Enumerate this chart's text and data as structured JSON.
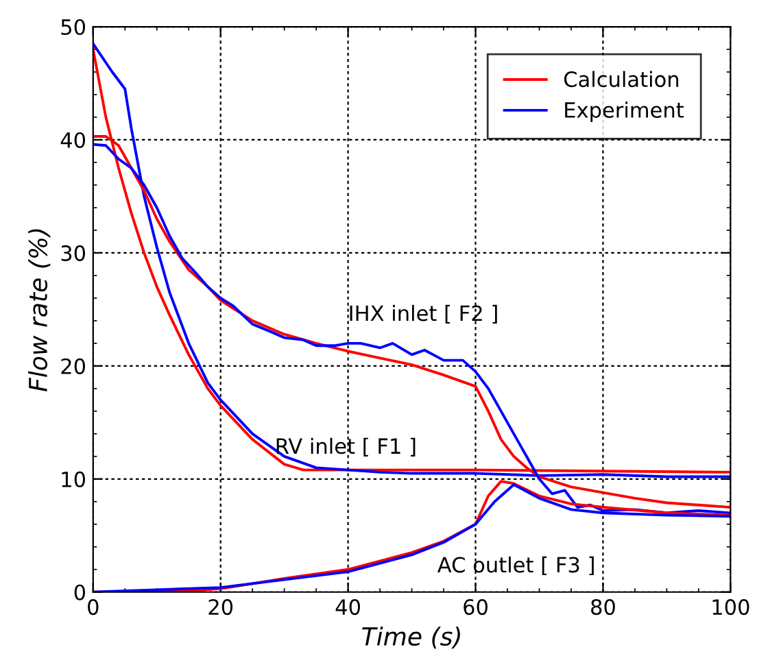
{
  "chart_data": {
    "type": "line",
    "xlabel": "Time (s)",
    "ylabel": "Flow rate (%)",
    "xlim": [
      0,
      100
    ],
    "ylim": [
      0,
      50
    ],
    "xticks": [
      0,
      20,
      40,
      60,
      80,
      100
    ],
    "yticks": [
      0,
      10,
      20,
      30,
      40,
      50
    ],
    "grid": true,
    "legend": "top right",
    "marker": "none",
    "line_style": "solid",
    "annotations": [
      "IHX inlet [ F2 ]",
      "RV inlet [ F1 ]",
      "AC outlet [ F3 ]"
    ],
    "series": [
      {
        "name": "Calculation",
        "color": "#ff0000",
        "x": [
          0,
          2,
          4,
          6,
          8,
          10,
          12,
          15,
          18,
          20,
          25,
          30,
          33,
          40,
          60,
          100
        ],
        "values": [
          48,
          42,
          37.5,
          33.5,
          30,
          27,
          24.5,
          21,
          18,
          16.5,
          13.5,
          11.3,
          10.8,
          10.8,
          10.8,
          10.6
        ]
      },
      {
        "name": "Experiment",
        "color": "#0000ff",
        "x": [
          0,
          3,
          5,
          6,
          8,
          10,
          12,
          15,
          18,
          20,
          25,
          30,
          35,
          40,
          45,
          50,
          60,
          70,
          80,
          90,
          100
        ],
        "values": [
          48.5,
          46,
          44.5,
          41,
          35,
          30.5,
          26.5,
          22,
          18.5,
          17,
          14,
          12,
          11,
          10.8,
          10.6,
          10.5,
          10.5,
          10.3,
          10.4,
          10.2,
          10.2
        ]
      },
      {
        "color": "#ff0000",
        "x": [
          0,
          2,
          4,
          6,
          8,
          10,
          12,
          15,
          18,
          20,
          25,
          30,
          35,
          40,
          45,
          50,
          55,
          60,
          62,
          64,
          66,
          68,
          70,
          75,
          80,
          85,
          90,
          95,
          100
        ],
        "values": [
          40.3,
          40.3,
          39.5,
          37.5,
          35.5,
          33,
          31,
          28.5,
          27,
          25.8,
          24,
          22.8,
          22,
          21.3,
          20.7,
          20.1,
          19.2,
          18.2,
          16,
          13.5,
          12,
          11,
          10.2,
          9.3,
          8.8,
          8.3,
          7.9,
          7.7,
          7.5
        ]
      },
      {
        "color": "#0000ff",
        "x": [
          0,
          2,
          4,
          6,
          8,
          10,
          12,
          14,
          16,
          18,
          20,
          22,
          25,
          28,
          30,
          33,
          35,
          38,
          40,
          42,
          45,
          47,
          50,
          52,
          55,
          58,
          60,
          62,
          64,
          66,
          68,
          70,
          72,
          74,
          76,
          78,
          80,
          85,
          90,
          95,
          100
        ],
        "values": [
          39.6,
          39.5,
          38.3,
          37.5,
          36,
          34,
          31.5,
          29.5,
          28.3,
          27,
          26,
          25.3,
          23.7,
          23,
          22.5,
          22.3,
          21.8,
          21.8,
          22,
          22,
          21.6,
          22,
          21,
          21.4,
          20.5,
          20.5,
          19.5,
          18,
          16,
          14,
          12,
          10,
          8.7,
          9,
          7.5,
          7.7,
          7.2,
          7.3,
          7,
          7.2,
          7
        ]
      },
      {
        "color": "#ff0000",
        "x": [
          0,
          15,
          20,
          30,
          40,
          50,
          55,
          60,
          62,
          64,
          66,
          70,
          75,
          80,
          90,
          100
        ],
        "values": [
          0,
          0.1,
          0.3,
          1.2,
          2,
          3.5,
          4.5,
          6,
          8.5,
          9.8,
          9.6,
          8.5,
          7.8,
          7.5,
          7,
          6.8
        ]
      },
      {
        "color": "#0000ff",
        "x": [
          0,
          20,
          30,
          40,
          50,
          55,
          60,
          63,
          66,
          70,
          75,
          80,
          90,
          100
        ],
        "values": [
          0,
          0.4,
          1.1,
          1.8,
          3.3,
          4.4,
          6,
          8,
          9.5,
          8.3,
          7.3,
          7,
          6.8,
          6.7
        ]
      }
    ]
  }
}
